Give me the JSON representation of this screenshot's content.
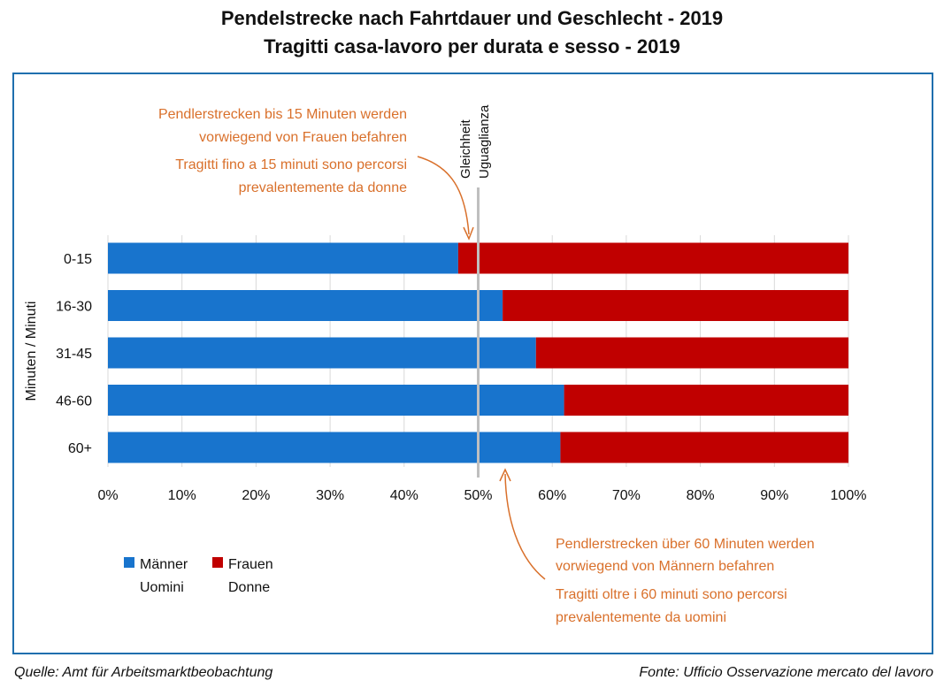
{
  "title_de": "Pendelstrecke nach Fahrtdauer und Geschlecht - 2019",
  "title_it": "Tragitti casa-lavoro per durata e sesso - 2019",
  "source_de": "Quelle: Amt für Arbeitsmarktbeobachtung",
  "source_it": "Fonte: Ufficio Osservazione mercato del lavoro",
  "equality_line": {
    "x": 50,
    "label_de": "Gleichheit",
    "label_it": "Uguaglianza",
    "color": "#bfbfbf"
  },
  "annotations": {
    "top": {
      "de": [
        "Pendlerstrecken bis 15 Minuten werden",
        "vorwiegend von Frauen befahren"
      ],
      "it": [
        "Tragitti fino a 15 minuti sono percorsi",
        "prevalentemente da donne"
      ],
      "color": "#d9702b"
    },
    "bottom": {
      "de": [
        "Pendlerstrecken über 60 Minuten werden",
        "vorwiegend von Männern befahren"
      ],
      "it": [
        "Tragitti oltre i 60 minuti sono percorsi",
        "prevalentemente da uomini"
      ],
      "color": "#d9702b"
    }
  },
  "chart_data": {
    "type": "bar",
    "orientation": "horizontal",
    "stacked": "percent",
    "categories": [
      "0-15",
      "16-30",
      "31-45",
      "46-60",
      "60+"
    ],
    "series": [
      {
        "name": "Männer / Uomini",
        "label_de": "Männer",
        "label_it": "Uomini",
        "color": "#1874cd",
        "values": [
          47.3,
          53.3,
          57.8,
          61.6,
          61.1
        ]
      },
      {
        "name": "Frauen / Donne",
        "label_de": "Frauen",
        "label_it": "Donne",
        "color": "#c00000",
        "values": [
          52.7,
          46.7,
          42.2,
          38.4,
          38.9
        ]
      }
    ],
    "xlim": [
      0,
      100
    ],
    "xticks": [
      "0%",
      "10%",
      "20%",
      "30%",
      "40%",
      "50%",
      "60%",
      "70%",
      "80%",
      "90%",
      "100%"
    ],
    "ylabel": "Minuten / Minuti",
    "grid": "vertical",
    "legend": "bottom-left"
  }
}
